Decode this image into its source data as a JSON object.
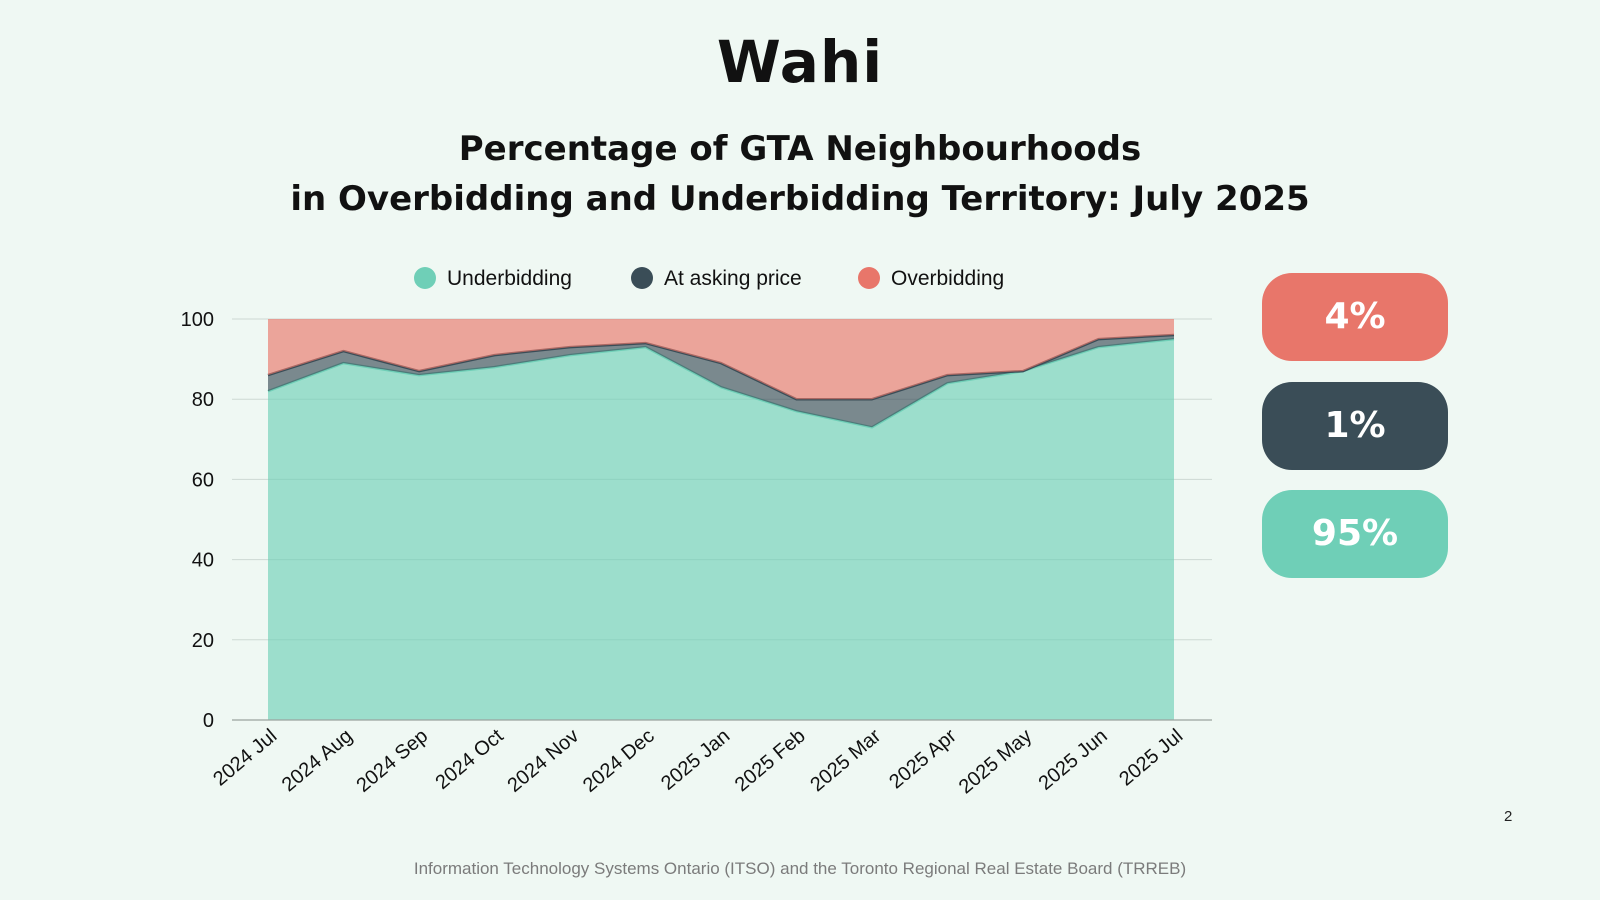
{
  "brand": {
    "logo_text": "Wahi"
  },
  "title_lines": [
    "Percentage of GTA Neighbourhoods",
    "in Overbidding and Underbidding Territory: July 2025"
  ],
  "badges": [
    {
      "label": "4%",
      "color": "#e8766a"
    },
    {
      "label": "1%",
      "color": "#3a4d57"
    },
    {
      "label": "95%",
      "color": "#6fcfb7"
    }
  ],
  "page_number": "2",
  "source": "Information Technology Systems Ontario (ITSO) and the Toronto Regional Real Estate Board (TRREB)",
  "chart_data": {
    "type": "area",
    "stacked": true,
    "title": "Percentage of GTA Neighbourhoods in Overbidding and Underbidding Territory: July 2025",
    "categories": [
      "2024 Jul",
      "2024 Aug",
      "2024 Sep",
      "2024 Oct",
      "2024 Nov",
      "2024 Dec",
      "2025 Jan",
      "2025 Feb",
      "2025 Mar",
      "2025 Apr",
      "2025 May",
      "2025 Jun",
      "2025 Jul"
    ],
    "series": [
      {
        "name": "Underbidding",
        "color": "#6fcfb7",
        "values": [
          82,
          89,
          86,
          88,
          91,
          93,
          83,
          77,
          73,
          84,
          87,
          93,
          95
        ]
      },
      {
        "name": "At asking price",
        "color": "#3a4d57",
        "values": [
          4,
          3,
          1,
          3,
          2,
          1,
          6,
          3,
          7,
          2,
          0,
          2,
          1
        ]
      },
      {
        "name": "Overbidding",
        "color": "#e8766a",
        "values": [
          14,
          8,
          13,
          9,
          7,
          6,
          11,
          20,
          20,
          14,
          13,
          5,
          4
        ]
      }
    ],
    "yticks": [
      0,
      20,
      40,
      60,
      80,
      100
    ],
    "ylim": [
      0,
      100
    ],
    "grid": true,
    "legend_position": "top-center"
  }
}
